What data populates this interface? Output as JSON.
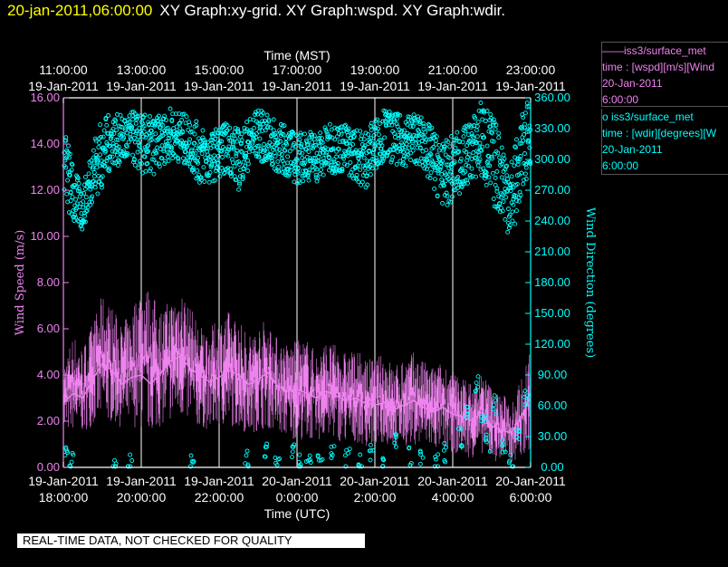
{
  "header": {
    "timestamp": "20-jan-2011,06:00:00",
    "graphs": "XY Graph:xy-grid.  XY Graph:wspd.  XY Graph:wdir."
  },
  "legend": [
    {
      "prefix": "——",
      "title": "iss3/surface_met",
      "desc": "time : [wspd][m/s][Wind",
      "date": "20-Jan-2011",
      "time": "6:00:00",
      "color": "#ee82ee"
    },
    {
      "prefix": "o ",
      "title": "iss3/surface_met",
      "desc": "time : [wdir][degrees][W",
      "date": "20-Jan-2011",
      "time": "6:00:00",
      "color": "#00ffff"
    }
  ],
  "notice": "REAL-TIME DATA, NOT CHECKED FOR QUALITY",
  "chart_data": {
    "type": "line",
    "title": "",
    "top_axis_label": "Time (MST)",
    "top_ticks": [
      {
        "time": "11:00:00",
        "date": "19-Jan-2011"
      },
      {
        "time": "13:00:00",
        "date": "19-Jan-2011"
      },
      {
        "time": "15:00:00",
        "date": "19-Jan-2011"
      },
      {
        "time": "17:00:00",
        "date": "19-Jan-2011"
      },
      {
        "time": "19:00:00",
        "date": "19-Jan-2011"
      },
      {
        "time": "21:00:00",
        "date": "19-Jan-2011"
      },
      {
        "time": "23:00:00",
        "date": "19-Jan-2011"
      }
    ],
    "xlabel": "Time (UTC)",
    "bottom_ticks": [
      {
        "date": "19-Jan-2011",
        "time": "18:00:00"
      },
      {
        "date": "19-Jan-2011",
        "time": "20:00:00"
      },
      {
        "date": "19-Jan-2011",
        "time": "22:00:00"
      },
      {
        "date": "20-Jan-2011",
        "time": "0:00:00"
      },
      {
        "date": "20-Jan-2011",
        "time": "2:00:00"
      },
      {
        "date": "20-Jan-2011",
        "time": "4:00:00"
      },
      {
        "date": "20-Jan-2011",
        "time": "6:00:00"
      }
    ],
    "x_range_hours": [
      0,
      12
    ],
    "grid_x": true,
    "ylabel_left": "Wind Speed (m/s)",
    "ylim_left": [
      0,
      16
    ],
    "y_ticks_left": [
      "0.00",
      "2.00",
      "4.00",
      "6.00",
      "8.00",
      "10.00",
      "12.00",
      "14.00",
      "16.00"
    ],
    "ylabel_right": "Wind Direction (degrees)",
    "ylim_right": [
      0,
      360
    ],
    "y_ticks_right": [
      "0.00",
      "30.00",
      "60.00",
      "90.00",
      "120.00",
      "150.00",
      "180.00",
      "210.00",
      "240.00",
      "270.00",
      "300.00",
      "330.00",
      "360.00"
    ],
    "colors": {
      "wspd": "#ee82ee",
      "wdir": "#00ffff"
    },
    "series": [
      {
        "name": "iss3/surface_met time : [wspd][m/s][Wind",
        "style": "line",
        "x": [
          0,
          0.25,
          0.5,
          0.75,
          1,
          1.25,
          1.5,
          1.75,
          2,
          2.25,
          2.5,
          2.75,
          3,
          3.25,
          3.5,
          3.75,
          4,
          4.25,
          4.5,
          4.75,
          5,
          5.25,
          5.5,
          5.75,
          6,
          6.25,
          6.5,
          6.75,
          7,
          7.25,
          7.5,
          7.75,
          8,
          8.25,
          8.5,
          8.75,
          9,
          9.25,
          9.5,
          9.75,
          10,
          10.25,
          10.5,
          10.75,
          11,
          11.25,
          11.5,
          11.75,
          12
        ],
        "values": [
          2.8,
          3.2,
          3.0,
          3.8,
          4.5,
          4.2,
          3.6,
          3.9,
          4.0,
          3.6,
          4.1,
          4.6,
          4.8,
          4.3,
          4.0,
          3.7,
          3.9,
          4.2,
          4.0,
          3.6,
          3.8,
          4.1,
          3.5,
          3.3,
          3.4,
          3.2,
          3.0,
          3.3,
          3.1,
          2.9,
          3.0,
          2.8,
          2.7,
          2.8,
          2.5,
          2.7,
          2.9,
          2.6,
          2.4,
          2.6,
          2.3,
          2.2,
          2.0,
          2.4,
          1.8,
          1.6,
          1.5,
          2.2,
          3.0
        ],
        "upper_envelope": [
          4.5,
          5.8,
          5.2,
          6.3,
          7.5,
          7.0,
          6.2,
          6.8,
          8.2,
          7.6,
          6.9,
          7.3,
          8.0,
          7.0,
          6.2,
          6.0,
          6.5,
          6.8,
          6.4,
          5.8,
          6.2,
          6.5,
          5.6,
          5.4,
          5.5,
          5.6,
          5.0,
          5.5,
          5.3,
          5.0,
          5.1,
          4.8,
          4.7,
          5.0,
          4.4,
          4.8,
          5.0,
          4.6,
          4.4,
          4.6,
          4.2,
          4.0,
          3.6,
          4.2,
          3.5,
          3.2,
          3.0,
          3.8,
          5.5
        ],
        "lower_envelope": [
          1.4,
          1.6,
          1.5,
          1.8,
          2.0,
          1.9,
          1.7,
          1.8,
          1.6,
          1.5,
          1.8,
          2.0,
          2.1,
          1.9,
          1.7,
          1.6,
          1.7,
          1.8,
          1.7,
          1.4,
          1.6,
          1.7,
          1.4,
          1.3,
          1.2,
          1.2,
          1.1,
          1.3,
          1.2,
          1.0,
          1.1,
          0.9,
          0.9,
          1.0,
          0.8,
          0.9,
          1.0,
          0.9,
          0.7,
          0.8,
          0.6,
          0.5,
          0.4,
          0.6,
          0.3,
          0.2,
          0.2,
          0.4,
          0.8
        ]
      },
      {
        "name": "iss3/surface_met time : [wdir][degrees][W",
        "style": "scatter",
        "x": [
          0,
          0.25,
          0.5,
          0.75,
          1,
          1.25,
          1.5,
          1.75,
          2,
          2.25,
          2.5,
          2.75,
          3,
          3.25,
          3.5,
          3.75,
          4,
          4.25,
          4.5,
          4.75,
          5,
          5.25,
          5.5,
          5.75,
          6,
          6.25,
          6.5,
          6.75,
          7,
          7.25,
          7.5,
          7.75,
          8,
          8.25,
          8.5,
          8.75,
          9,
          9.25,
          9.5,
          9.75,
          10,
          10.25,
          10.5,
          10.75,
          11,
          11.25,
          11.5,
          11.75,
          12
        ],
        "values": [
          300,
          265,
          250,
          290,
          305,
          320,
          318,
          322,
          315,
          312,
          318,
          325,
          322,
          316,
          305,
          300,
          308,
          312,
          300,
          315,
          325,
          318,
          312,
          308,
          300,
          305,
          302,
          308,
          312,
          310,
          305,
          300,
          315,
          325,
          320,
          318,
          322,
          315,
          300,
          285,
          290,
          300,
          310,
          320,
          300,
          285,
          260,
          300,
          330
        ],
        "spread": [
          40,
          30,
          20,
          30,
          35,
          25,
          25,
          25,
          30,
          30,
          25,
          25,
          25,
          25,
          30,
          25,
          25,
          25,
          30,
          25,
          25,
          25,
          25,
          25,
          25,
          25,
          25,
          25,
          25,
          25,
          25,
          30,
          25,
          25,
          25,
          25,
          25,
          25,
          30,
          30,
          35,
          30,
          30,
          40,
          45,
          40,
          40,
          40,
          35
        ]
      }
    ],
    "wdir_low_points": {
      "x": [
        0.1,
        0.2,
        1.3,
        1.7,
        3.3,
        4.7,
        5.2,
        5.5,
        5.9,
        6.1,
        6.3,
        6.6,
        6.9,
        7.3,
        7.6,
        7.9,
        8.2,
        8.5,
        8.9,
        9.2,
        9.6,
        9.8,
        10.2,
        10.4,
        10.6,
        10.8,
        10.9,
        11.1,
        11.3,
        11.5,
        11.7,
        11.9
      ],
      "values": [
        12,
        5,
        5,
        3,
        3,
        6,
        20,
        12,
        18,
        5,
        10,
        2,
        15,
        8,
        3,
        12,
        5,
        22,
        10,
        8,
        3,
        15,
        30,
        55,
        80,
        45,
        25,
        60,
        20,
        10,
        35,
        70
      ]
    }
  }
}
